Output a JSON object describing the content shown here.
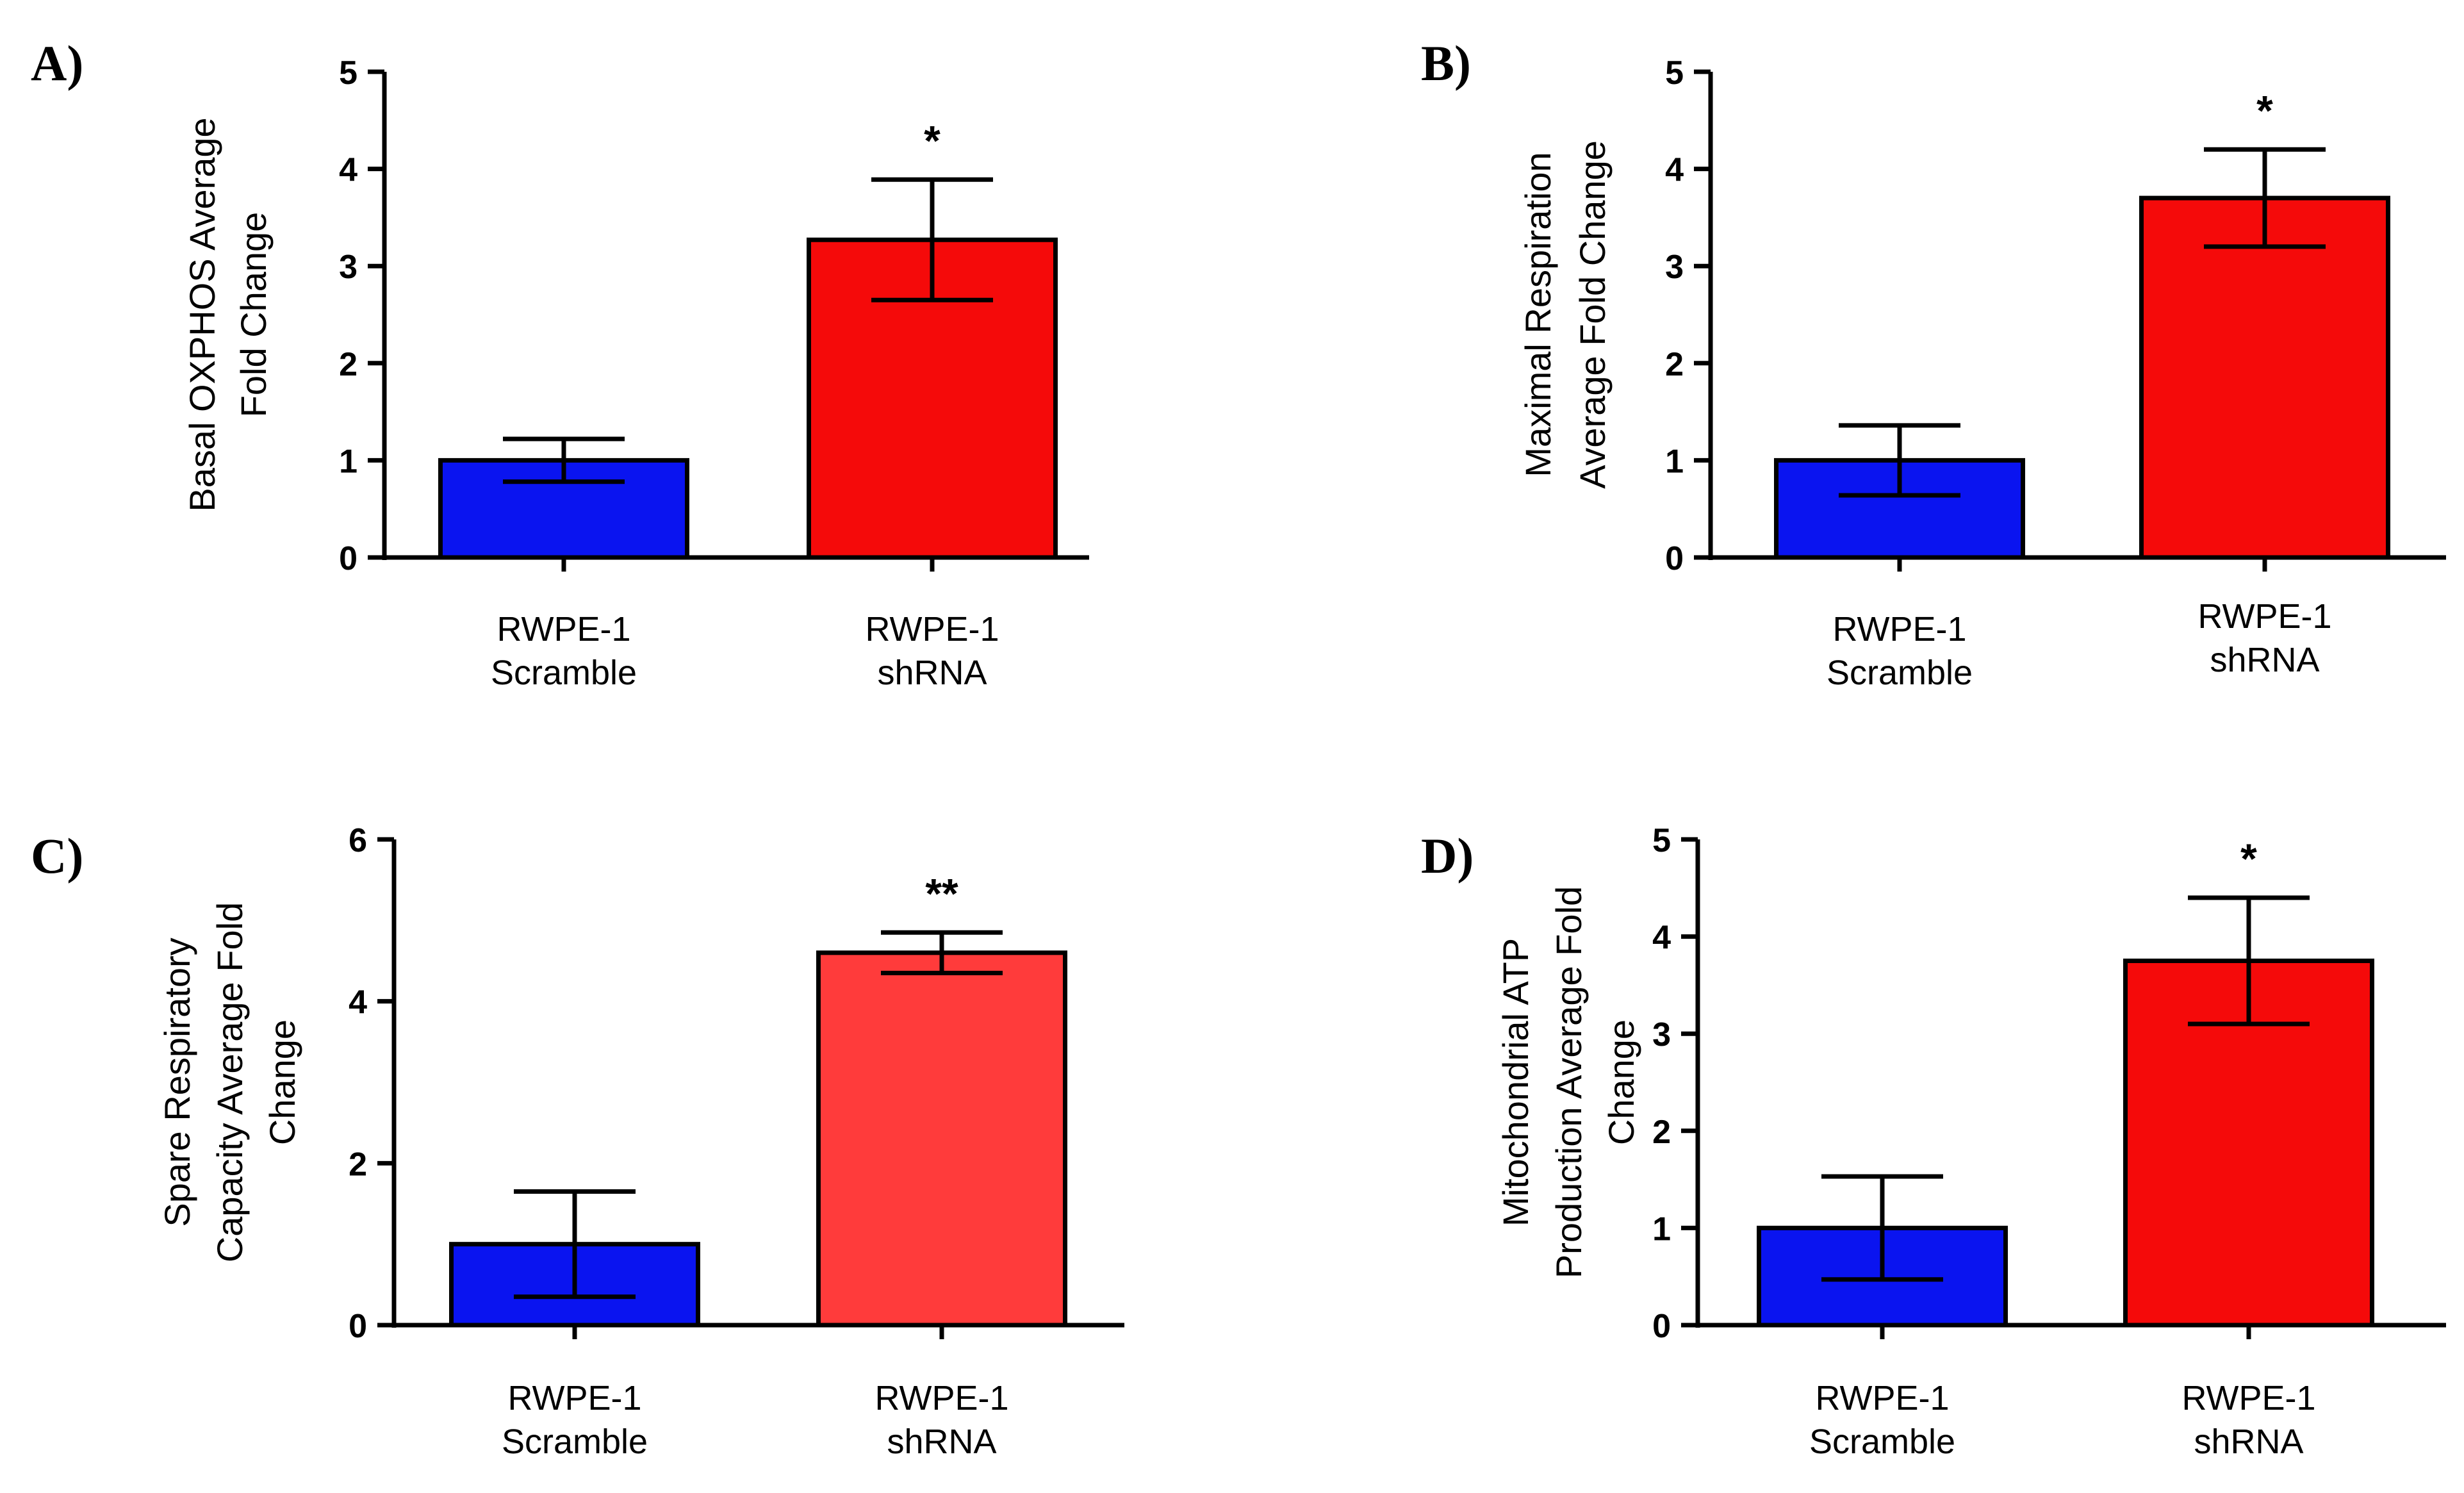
{
  "figure": {
    "colors": {
      "scramble": "#0a14f0",
      "shrna": "#f50a0a",
      "shrna_light": "#ff3b3b",
      "axis": "#000000"
    }
  },
  "chart_data": [
    {
      "type": "bar",
      "panel_label": "A)",
      "ylabel_lines": [
        "Basal OXPHOS Average",
        "Fold Change"
      ],
      "ylim": [
        0,
        5
      ],
      "yticks": [
        "0",
        "1",
        "2",
        "3",
        "4",
        "5"
      ],
      "categories": [
        [
          "RWPE-1",
          "Scramble"
        ],
        [
          "RWPE-1",
          "shRNA"
        ]
      ],
      "values": [
        1.0,
        3.27
      ],
      "errors": [
        0.22,
        0.62
      ],
      "significance": [
        "",
        "*"
      ],
      "bar_colors": [
        "#0a14f0",
        "#f50a0a"
      ]
    },
    {
      "type": "bar",
      "panel_label": "B)",
      "ylabel_lines": [
        "Maximal Respiration",
        "Average Fold Change"
      ],
      "ylim": [
        0,
        5
      ],
      "yticks": [
        "0",
        "1",
        "2",
        "3",
        "4",
        "5"
      ],
      "categories": [
        [
          "RWPE-1",
          "Scramble"
        ],
        [
          "RWPE-1",
          "shRNA"
        ]
      ],
      "values": [
        1.0,
        3.7
      ],
      "errors": [
        0.36,
        0.5
      ],
      "significance": [
        "",
        "*"
      ],
      "bar_colors": [
        "#0a14f0",
        "#f50a0a"
      ]
    },
    {
      "type": "bar",
      "panel_label": "C)",
      "ylabel_lines": [
        "Spare Respiratory",
        "Capacity Average Fold",
        "Change"
      ],
      "ylim": [
        0,
        6
      ],
      "yticks": [
        "0",
        "2",
        "4",
        "6"
      ],
      "categories": [
        [
          "RWPE-1",
          "Scramble"
        ],
        [
          "RWPE-1",
          "shRNA"
        ]
      ],
      "values": [
        1.0,
        4.6
      ],
      "errors": [
        0.65,
        0.25
      ],
      "significance": [
        "",
        "**"
      ],
      "bar_colors": [
        "#0a14f0",
        "#ff3b3b"
      ]
    },
    {
      "type": "bar",
      "panel_label": "D)",
      "ylabel_lines": [
        "Mitochondrial ATP",
        "Production Average Fold",
        "Change"
      ],
      "ylim": [
        0,
        5
      ],
      "yticks": [
        "0",
        "1",
        "2",
        "3",
        "4",
        "5"
      ],
      "categories": [
        [
          "RWPE-1",
          "Scramble"
        ],
        [
          "RWPE-1",
          "shRNA"
        ]
      ],
      "values": [
        1.0,
        3.75
      ],
      "errors": [
        0.53,
        0.65
      ],
      "significance": [
        "",
        "*"
      ],
      "bar_colors": [
        "#0a14f0",
        "#f50a0a"
      ]
    }
  ]
}
